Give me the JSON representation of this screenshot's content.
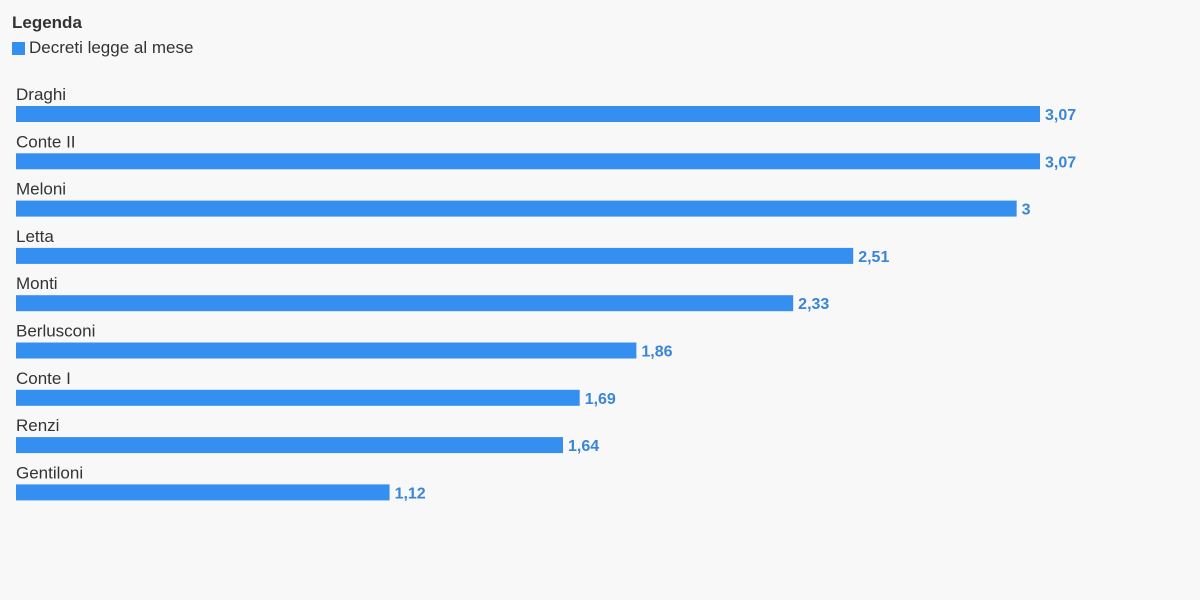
{
  "legend": {
    "title": "Legenda",
    "items": [
      {
        "label": "Decreti legge al mese",
        "color": "#358ff0"
      }
    ]
  },
  "chart_data": {
    "type": "bar",
    "orientation": "horizontal",
    "categories": [
      "Draghi",
      "Conte II",
      "Meloni",
      "Letta",
      "Monti",
      "Berlusconi",
      "Conte I",
      "Renzi",
      "Gentiloni"
    ],
    "series": [
      {
        "name": "Decreti legge al mese",
        "values": [
          3.07,
          3.07,
          3,
          2.51,
          2.33,
          1.86,
          1.69,
          1.64,
          1.12
        ],
        "labels": [
          "3,07",
          "3,07",
          "3",
          "2,51",
          "2,33",
          "1,86",
          "1,69",
          "1,64",
          "1,12"
        ],
        "color": "#358ff0",
        "label_color": "#3a86d6"
      }
    ],
    "xlim": [
      0,
      3.07
    ],
    "grid": false,
    "legend_position": "top-left"
  }
}
